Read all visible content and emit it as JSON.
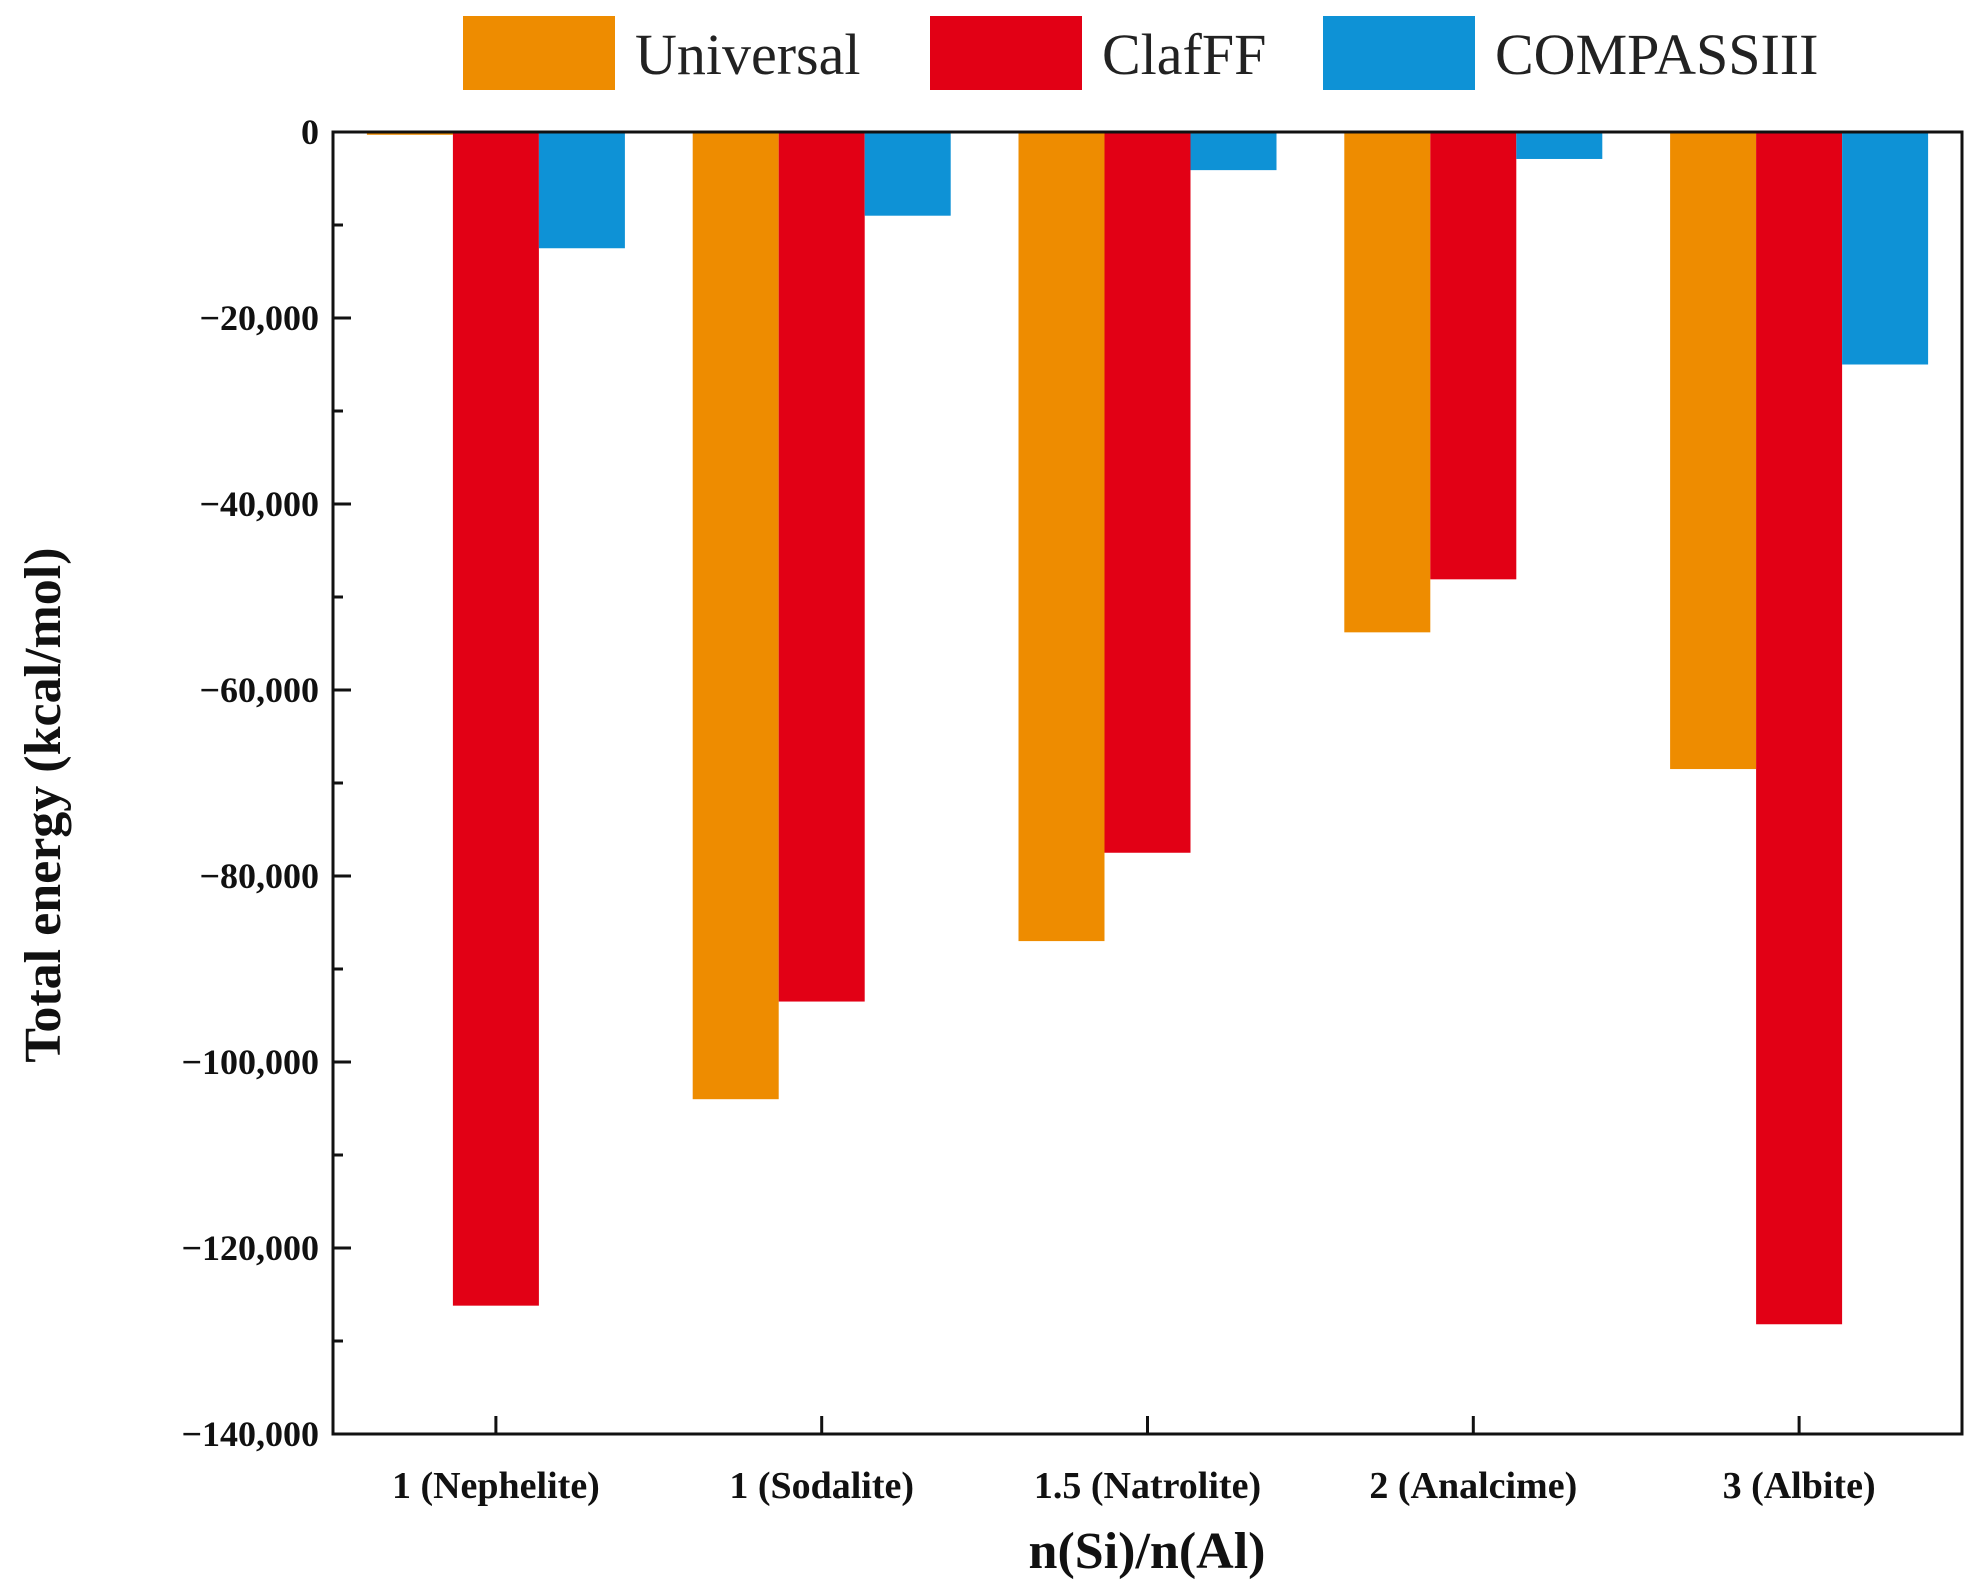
{
  "chart_data": {
    "type": "bar",
    "xlabel": "n(Si)/n(Al)",
    "ylabel": "Total energy (kcal/mol)",
    "ylim": [
      -140000,
      0
    ],
    "yticks": [
      0,
      -20000,
      -40000,
      -60000,
      -80000,
      -100000,
      -120000,
      -140000
    ],
    "ytick_labels": [
      "0",
      "−20,000",
      "−40,000",
      "−60,000",
      "−80,000",
      "−100,000",
      "−120,000",
      "−140,000"
    ],
    "categories": [
      "1 (Nephelite)",
      "1 (Sodalite)",
      "1.5 (Natrolite)",
      "2 (Analcime)",
      "3 (Albite)"
    ],
    "legend_position": "top",
    "series": [
      {
        "name": "Universal",
        "color": "#ee8c00",
        "values": [
          -300,
          -104000,
          -87000,
          -53800,
          -68500
        ]
      },
      {
        "name": "ClafFF",
        "color": "#e20015",
        "values": [
          -126200,
          -93500,
          -77500,
          -48100,
          -128200
        ]
      },
      {
        "name": "COMPASSIII",
        "color": "#0e92d6",
        "values": [
          -12500,
          -9000,
          -4100,
          -2900,
          -25000
        ]
      }
    ]
  }
}
